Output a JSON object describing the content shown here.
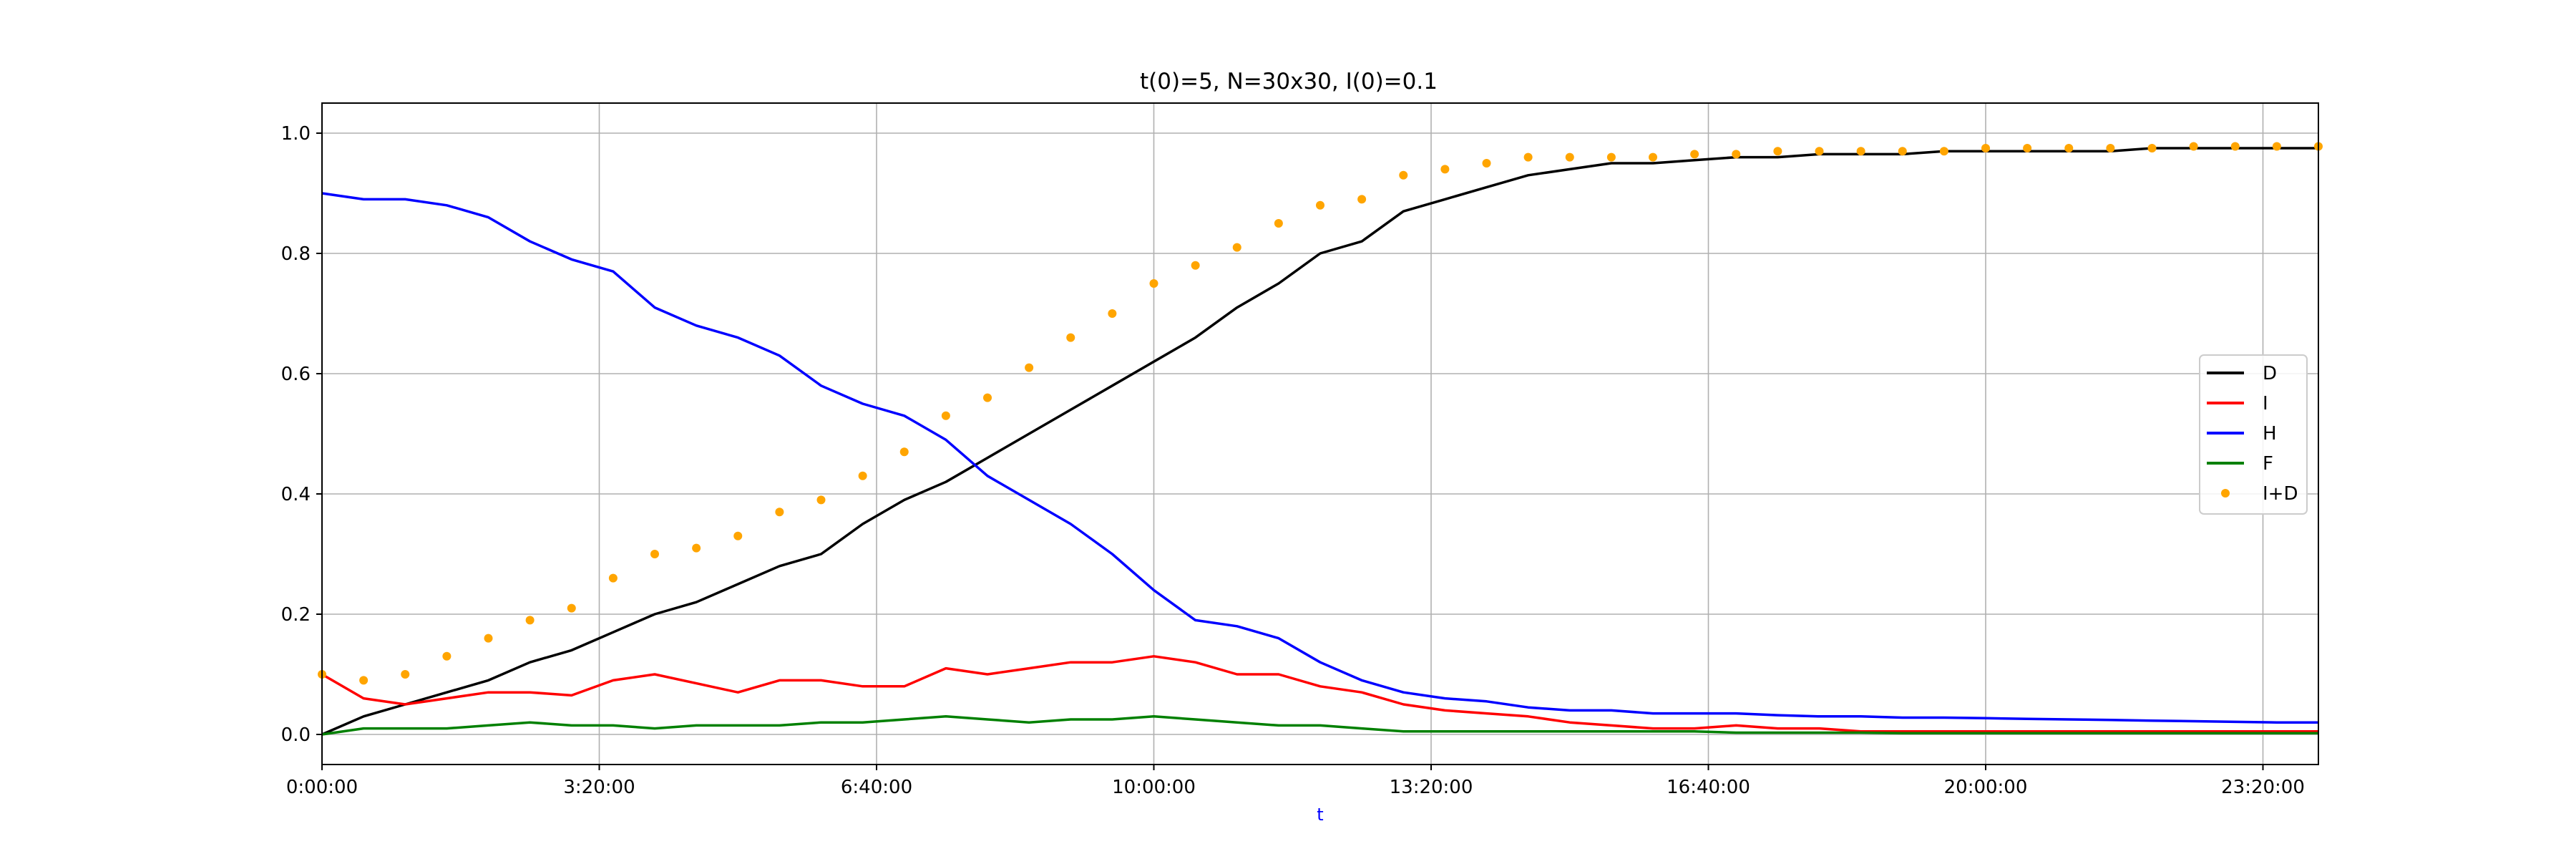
{
  "chart_data": {
    "type": "line",
    "title": "t(0)=5, N=30x30, I(0)=0.1",
    "xlabel": "t",
    "ylabel": "",
    "xlim": [
      0,
      86400
    ],
    "ylim": [
      -0.05,
      1.05
    ],
    "x_ticks": [
      {
        "value": 0,
        "label": "0:00:00"
      },
      {
        "value": 12000,
        "label": "3:20:00"
      },
      {
        "value": 24000,
        "label": "6:40:00"
      },
      {
        "value": 36000,
        "label": "10:00:00"
      },
      {
        "value": 48000,
        "label": "13:20:00"
      },
      {
        "value": 60000,
        "label": "16:40:00"
      },
      {
        "value": 72000,
        "label": "20:00:00"
      },
      {
        "value": 84000,
        "label": "23:20:00"
      }
    ],
    "y_ticks": [
      {
        "value": 0.0,
        "label": "0.0"
      },
      {
        "value": 0.2,
        "label": "0.2"
      },
      {
        "value": 0.4,
        "label": "0.4"
      },
      {
        "value": 0.6,
        "label": "0.6"
      },
      {
        "value": 0.8,
        "label": "0.8"
      },
      {
        "value": 1.0,
        "label": "1.0"
      }
    ],
    "grid": true,
    "legend_position": "center-right",
    "x": [
      0,
      1800,
      3600,
      5400,
      7200,
      9000,
      10800,
      12600,
      14400,
      16200,
      18000,
      19800,
      21600,
      23400,
      25200,
      27000,
      28800,
      30600,
      32400,
      34200,
      36000,
      37800,
      39600,
      41400,
      43200,
      45000,
      46800,
      48600,
      50400,
      52200,
      54000,
      55800,
      57600,
      59400,
      61200,
      63000,
      64800,
      66600,
      68400,
      70200,
      72000,
      73800,
      75600,
      77400,
      79200,
      81000,
      82800,
      84600,
      86400
    ],
    "series": [
      {
        "name": "D",
        "color": "#000000",
        "style": "line",
        "values": [
          0.0,
          0.03,
          0.05,
          0.07,
          0.09,
          0.12,
          0.14,
          0.17,
          0.2,
          0.22,
          0.25,
          0.28,
          0.3,
          0.35,
          0.39,
          0.42,
          0.46,
          0.5,
          0.54,
          0.58,
          0.62,
          0.66,
          0.71,
          0.75,
          0.8,
          0.82,
          0.87,
          0.89,
          0.91,
          0.93,
          0.94,
          0.95,
          0.95,
          0.955,
          0.96,
          0.96,
          0.965,
          0.965,
          0.965,
          0.97,
          0.97,
          0.97,
          0.97,
          0.97,
          0.975,
          0.975,
          0.975,
          0.975,
          0.975
        ]
      },
      {
        "name": "I",
        "color": "#ff0000",
        "style": "line",
        "values": [
          0.1,
          0.06,
          0.05,
          0.06,
          0.07,
          0.07,
          0.065,
          0.09,
          0.1,
          0.085,
          0.07,
          0.09,
          0.09,
          0.08,
          0.08,
          0.11,
          0.1,
          0.11,
          0.12,
          0.12,
          0.13,
          0.12,
          0.1,
          0.1,
          0.08,
          0.07,
          0.05,
          0.04,
          0.035,
          0.03,
          0.02,
          0.015,
          0.01,
          0.01,
          0.015,
          0.01,
          0.01,
          0.005,
          0.005,
          0.005,
          0.005,
          0.005,
          0.005,
          0.005,
          0.005,
          0.005,
          0.005,
          0.005,
          0.005
        ]
      },
      {
        "name": "H",
        "color": "#0000ff",
        "style": "line",
        "values": [
          0.9,
          0.89,
          0.89,
          0.88,
          0.86,
          0.82,
          0.79,
          0.77,
          0.71,
          0.68,
          0.66,
          0.63,
          0.58,
          0.55,
          0.53,
          0.49,
          0.43,
          0.39,
          0.35,
          0.3,
          0.24,
          0.19,
          0.18,
          0.16,
          0.12,
          0.09,
          0.07,
          0.06,
          0.055,
          0.045,
          0.04,
          0.04,
          0.035,
          0.035,
          0.035,
          0.032,
          0.03,
          0.03,
          0.028,
          0.028,
          0.027,
          0.026,
          0.025,
          0.024,
          0.023,
          0.022,
          0.021,
          0.02,
          0.02
        ]
      },
      {
        "name": "F",
        "color": "#008000",
        "style": "line",
        "values": [
          0.0,
          0.01,
          0.01,
          0.01,
          0.015,
          0.02,
          0.015,
          0.015,
          0.01,
          0.015,
          0.015,
          0.015,
          0.02,
          0.02,
          0.025,
          0.03,
          0.025,
          0.02,
          0.025,
          0.025,
          0.03,
          0.025,
          0.02,
          0.015,
          0.015,
          0.01,
          0.005,
          0.005,
          0.005,
          0.005,
          0.005,
          0.005,
          0.005,
          0.005,
          0.003,
          0.003,
          0.003,
          0.003,
          0.002,
          0.002,
          0.002,
          0.002,
          0.002,
          0.002,
          0.002,
          0.002,
          0.002,
          0.002,
          0.002
        ]
      },
      {
        "name": "I+D",
        "color": "#ffa500",
        "style": "dots",
        "values": [
          0.1,
          0.09,
          0.1,
          0.13,
          0.16,
          0.19,
          0.21,
          0.26,
          0.3,
          0.31,
          0.33,
          0.37,
          0.39,
          0.43,
          0.47,
          0.53,
          0.56,
          0.61,
          0.66,
          0.7,
          0.75,
          0.78,
          0.81,
          0.85,
          0.88,
          0.89,
          0.93,
          0.94,
          0.95,
          0.96,
          0.96,
          0.96,
          0.96,
          0.965,
          0.965,
          0.97,
          0.97,
          0.97,
          0.97,
          0.97,
          0.975,
          0.975,
          0.975,
          0.975,
          0.975,
          0.978,
          0.978,
          0.978,
          0.978
        ]
      }
    ]
  }
}
